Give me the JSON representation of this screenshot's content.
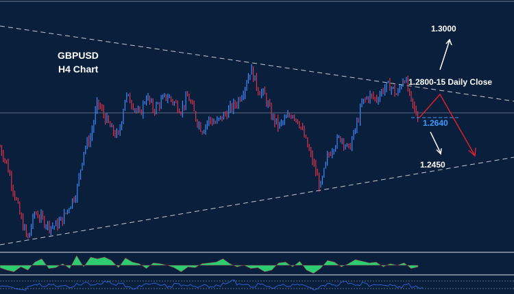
{
  "chart_data": {
    "type": "candlestick",
    "title": "GBPUSD",
    "subtitle": "H4 Chart",
    "ylim": [
      1.2185,
      1.3024
    ],
    "grid": false,
    "colors": {
      "background": "#0a1f3c",
      "up": "#3d8bff",
      "down": "#e0334a",
      "trendline": "#c8ccd4",
      "bearish_path": "#e0202a",
      "support_label": "#3d9bff",
      "histogram": "#2ecc71",
      "oscillator": "#2f5fd0"
    },
    "price_path": [
      1.253,
      1.2472,
      1.238,
      1.2288,
      1.2219,
      1.2311,
      1.2288,
      1.2265,
      1.2265,
      1.2288,
      1.2334,
      1.238,
      1.2518,
      1.2564,
      1.2679,
      1.2633,
      1.2587,
      1.2564,
      1.2702,
      1.2679,
      1.2633,
      1.2702,
      1.2656,
      1.2679,
      1.2702,
      1.2679,
      1.2656,
      1.2702,
      1.2633,
      1.2587,
      1.2622,
      1.261,
      1.2633,
      1.2656,
      1.2679,
      1.2725,
      1.2794,
      1.2725,
      1.2702,
      1.2633,
      1.2599,
      1.2622,
      1.2645,
      1.261,
      1.2541,
      1.2472,
      1.2392,
      1.2495,
      1.2541,
      1.2564,
      1.2518,
      1.2587,
      1.2679,
      1.2702,
      1.2691,
      1.2725,
      1.2737,
      1.2702,
      1.2771,
      1.2679,
      1.2629
    ],
    "levels": {
      "support": "1.2640",
      "resistance_close": "1.2800-15 Daily Close",
      "upside_target": "1.3000",
      "downside_target": "1.2450"
    },
    "histogram": [
      -3,
      -6,
      -8,
      -2,
      -6,
      4,
      8,
      -4,
      -3,
      2,
      -4,
      12,
      -2,
      10,
      8,
      10,
      6,
      -3,
      9,
      4,
      2,
      -4,
      3,
      2,
      0,
      -3,
      -8,
      -2,
      -3,
      2,
      3,
      4,
      8,
      2,
      -2,
      0,
      -4,
      -3,
      -8,
      -6,
      3,
      4,
      -2,
      5,
      -6,
      -10,
      -4,
      6,
      4,
      -2,
      2,
      7,
      5,
      3,
      4,
      -2,
      2,
      0,
      3,
      -4,
      -2
    ],
    "oscillator": [
      2,
      3,
      -2,
      -4,
      3,
      6,
      3,
      5,
      2,
      4,
      1,
      6,
      9,
      4,
      7,
      10,
      5,
      8,
      3,
      -1,
      4,
      7,
      6,
      5,
      2,
      6,
      3,
      4,
      1,
      5,
      2,
      4,
      8,
      11,
      6,
      4,
      2,
      7,
      3,
      1,
      5,
      2,
      6,
      4,
      1,
      -2,
      3,
      6,
      4,
      9,
      7,
      5,
      8,
      4,
      6,
      3,
      5,
      1,
      6,
      2,
      0
    ]
  }
}
